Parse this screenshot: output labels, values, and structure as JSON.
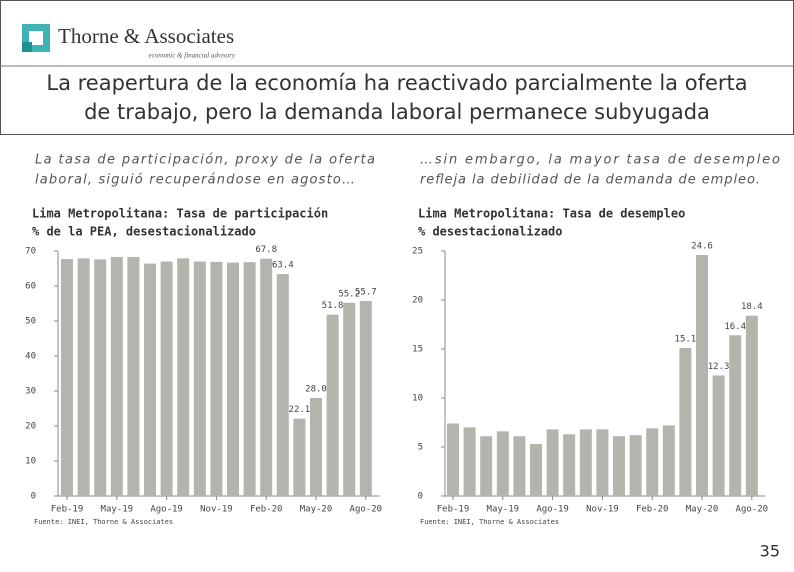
{
  "logo": "Thorne & Associates",
  "tagline": "economic & financial advisory",
  "headline": [
    "La reapertura de la economía ha reactivado parcialmente la oferta",
    "de trabajo, pero la demanda laboral permanece subyugada"
  ],
  "page_number": "35",
  "chart_data": [
    {
      "type": "bar",
      "caption": [
        "La tasa de participación, proxy de la oferta",
        "laboral, siguió recuperándose en agosto…"
      ],
      "title": [
        "Lima Metropolitana: Tasa de participación",
        "% de la PEA, desestacionalizado"
      ],
      "source": "Fuente: INEI, Thorne & Associates",
      "categories": [
        "Feb-19",
        null,
        null,
        "May-19",
        null,
        null,
        "Ago-19",
        null,
        null,
        "Nov-19",
        null,
        null,
        "Feb-20",
        null,
        null,
        "May-20",
        null,
        null,
        "Ago-20"
      ],
      "values": [
        67.7,
        67.9,
        67.6,
        68.3,
        68.3,
        66.4,
        67.0,
        67.9,
        67.0,
        66.9,
        66.7,
        66.8,
        67.8,
        63.4,
        22.1,
        28.0,
        51.8,
        55.2,
        55.7
      ],
      "value_labels": [
        null,
        null,
        null,
        null,
        null,
        null,
        null,
        null,
        null,
        null,
        null,
        null,
        "67.8",
        "63.4",
        "22.1",
        "28.0",
        "51.8",
        "55.2",
        "55.7"
      ],
      "color": "#b5b4ac",
      "ylim": [
        0,
        70
      ],
      "yticks": [
        0,
        10,
        20,
        30,
        40,
        50,
        60,
        70
      ]
    },
    {
      "type": "bar",
      "caption": [
        "…sin embargo, la mayor tasa de desempleo",
        "refleja la debilidad de la demanda de empleo."
      ],
      "title": [
        "Lima Metropolitana: Tasa de desempleo",
        "% desestacionalizado"
      ],
      "source": "Fuente: INEI, Thorne & Associates",
      "categories": [
        "Feb-19",
        null,
        null,
        "May-19",
        null,
        null,
        "Ago-19",
        null,
        null,
        "Nov-19",
        null,
        null,
        "Feb-20",
        null,
        null,
        "May-20",
        null,
        null,
        "Ago-20"
      ],
      "values": [
        7.4,
        7.0,
        6.1,
        6.6,
        6.1,
        5.3,
        6.8,
        6.3,
        6.8,
        6.8,
        6.1,
        6.2,
        6.9,
        7.2,
        15.1,
        24.6,
        12.3,
        16.4,
        18.4
      ],
      "value_labels": [
        null,
        null,
        null,
        null,
        null,
        null,
        null,
        null,
        null,
        null,
        null,
        null,
        null,
        null,
        "15.1",
        "24.6",
        "12.3",
        "16.4",
        "18.4"
      ],
      "color": "#b5b4ac",
      "ylim": [
        0,
        25
      ],
      "yticks": [
        0,
        5,
        10,
        15,
        20,
        25
      ]
    }
  ]
}
